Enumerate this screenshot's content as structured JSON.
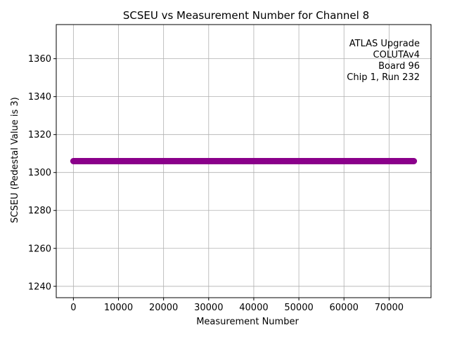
{
  "chart_data": {
    "type": "scatter",
    "title": "SCSEU vs Measurement Number for Channel 8",
    "xlabel": "Measurement Number",
    "ylabel": "SCSEU (Pedestal Value is 3)",
    "xlim": [
      -3800,
      79300
    ],
    "ylim": [
      1234,
      1378
    ],
    "xticks": [
      0,
      10000,
      20000,
      30000,
      40000,
      50000,
      60000,
      70000
    ],
    "yticks": [
      1240,
      1260,
      1280,
      1300,
      1320,
      1340,
      1360
    ],
    "grid": true,
    "series": [
      {
        "color": "#8b008b",
        "x_start": 0,
        "x_end": 75500,
        "y": 1306
      }
    ],
    "annotation_lines": [
      "ATLAS Upgrade",
      "COLUTAv4",
      "Board 96",
      "Chip 1, Run 232"
    ],
    "annotation_placement": "top-right"
  }
}
